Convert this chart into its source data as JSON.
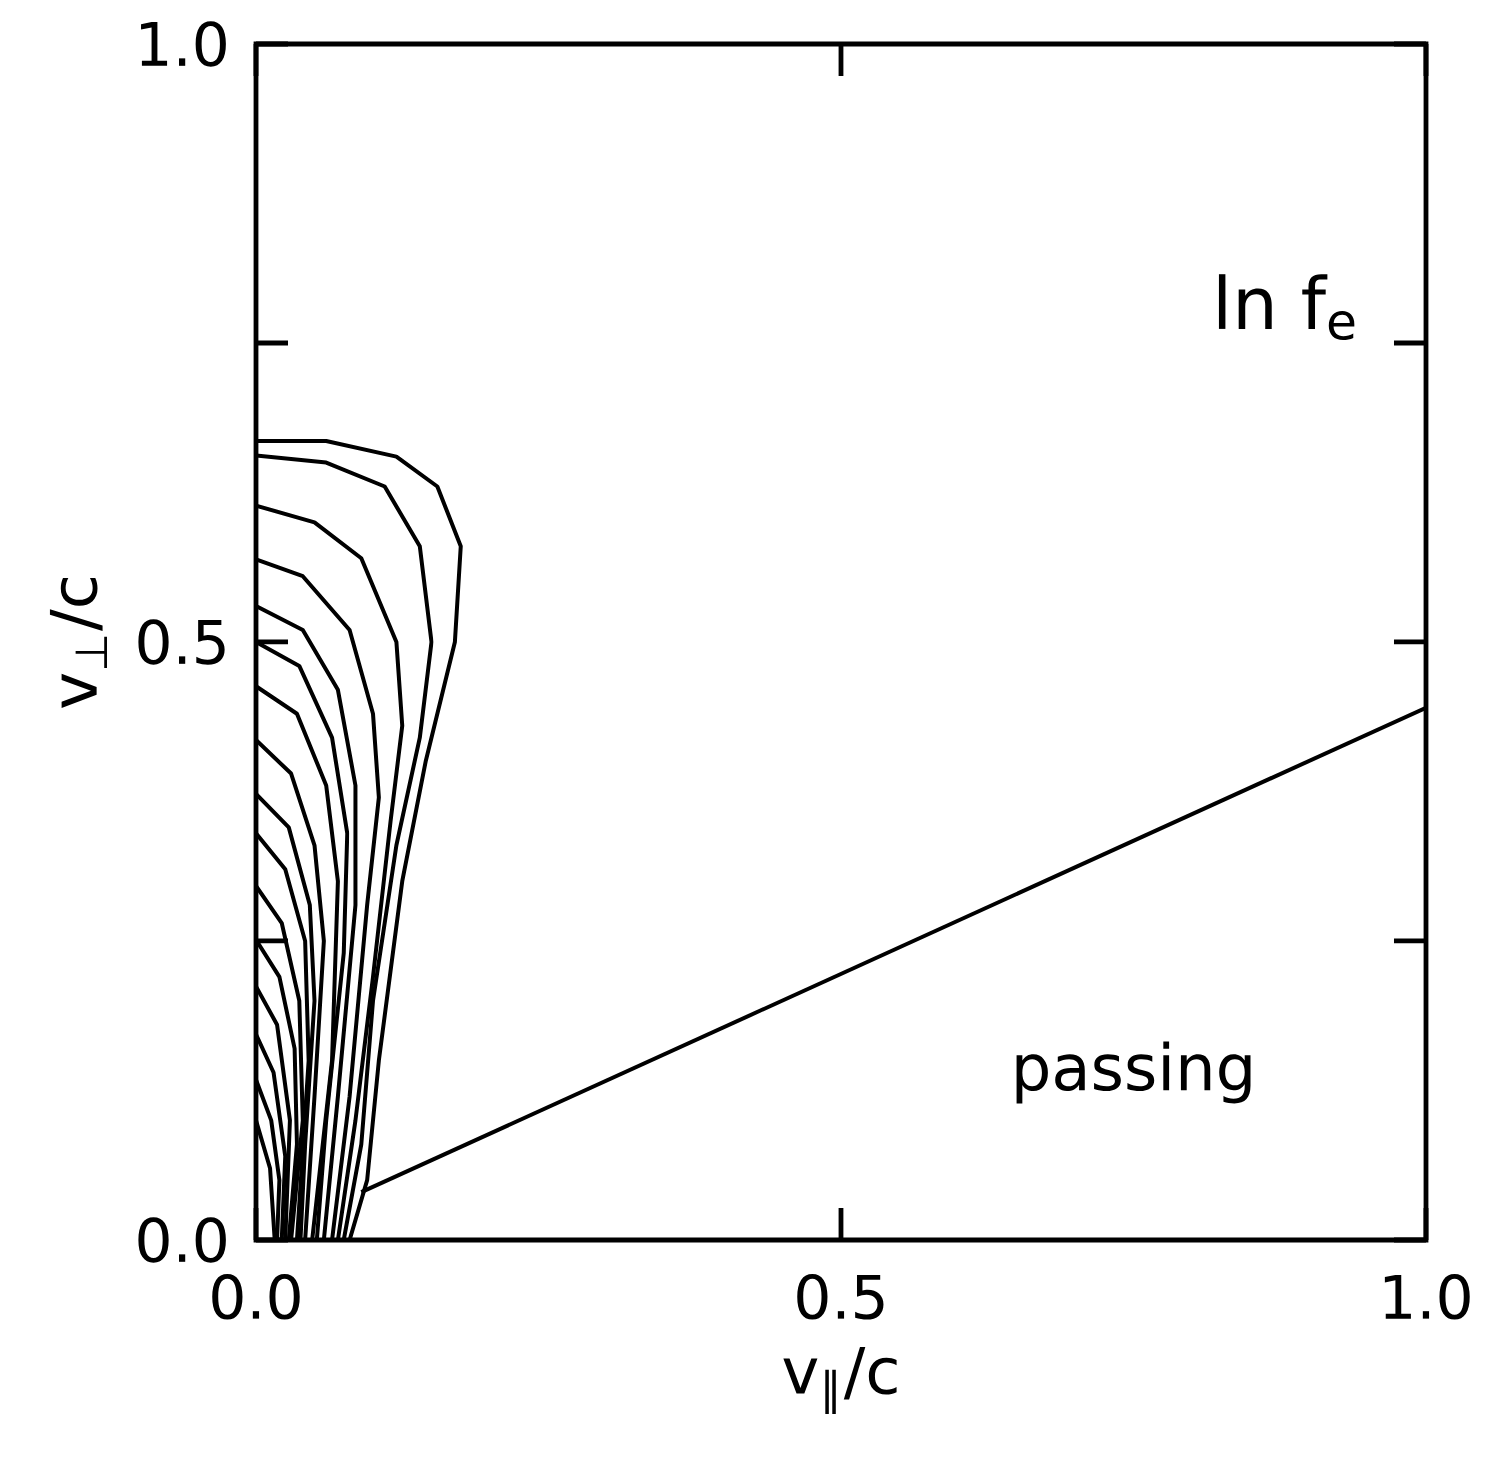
{
  "chart_data": {
    "type": "line",
    "xlabel": "v$_{∥}$/c",
    "ylabel": "v$_{⊥}$/c",
    "annotations": [
      "ln f$_{e}$",
      "passing"
    ],
    "xlim": [
      0,
      1
    ],
    "ylim": [
      0,
      1
    ],
    "xticks": [
      {
        "value": 0,
        "label": "0.0"
      },
      {
        "value": 0.5,
        "label": "0.5"
      },
      {
        "value": 1,
        "label": "1.0"
      }
    ],
    "yticks": [
      {
        "value": 0,
        "label": "0.0"
      },
      {
        "value": 0.25,
        "label": null
      },
      {
        "value": 0.5,
        "label": "0.5"
      },
      {
        "value": 0.75,
        "label": null
      },
      {
        "value": 1,
        "label": "1.0"
      }
    ],
    "marker": "none",
    "line_style": "solid",
    "series": [
      {
        "color": "#000000",
        "x": [
          0,
          0.06,
          0.12,
          0.155,
          0.175,
          0.17,
          0.145,
          0.125,
          0.105,
          0.095,
          0.08
        ],
        "values": [
          0.668,
          0.668,
          0.655,
          0.63,
          0.58,
          0.5,
          0.4,
          0.3,
          0.15,
          0.05,
          0.0
        ]
      },
      {
        "color": "#000000",
        "x": [
          0,
          0.06,
          0.11,
          0.14,
          0.15,
          0.14,
          0.12,
          0.1,
          0.09,
          0.075
        ],
        "values": [
          0.656,
          0.65,
          0.63,
          0.58,
          0.5,
          0.42,
          0.33,
          0.2,
          0.08,
          0
        ]
      },
      {
        "color": "#000000",
        "x": [
          0,
          0.05,
          0.09,
          0.12,
          0.125,
          0.115,
          0.1,
          0.085,
          0.07
        ],
        "values": [
          0.614,
          0.6,
          0.57,
          0.5,
          0.43,
          0.35,
          0.22,
          0.1,
          0
        ]
      },
      {
        "color": "#000000",
        "x": [
          0,
          0.04,
          0.08,
          0.1,
          0.105,
          0.095,
          0.08,
          0.065
        ],
        "values": [
          0.569,
          0.555,
          0.51,
          0.44,
          0.37,
          0.28,
          0.12,
          0
        ]
      },
      {
        "color": "#000000",
        "x": [
          0,
          0.04,
          0.07,
          0.085,
          0.085,
          0.07,
          0.058
        ],
        "values": [
          0.53,
          0.51,
          0.46,
          0.38,
          0.28,
          0.12,
          0
        ]
      },
      {
        "color": "#000000",
        "x": [
          0,
          0.037,
          0.065,
          0.078,
          0.075,
          0.06,
          0.052
        ],
        "values": [
          0.5,
          0.48,
          0.42,
          0.34,
          0.24,
          0.1,
          0
        ]
      },
      {
        "color": "#000000",
        "x": [
          0,
          0.035,
          0.06,
          0.07,
          0.065,
          0.048
        ],
        "values": [
          0.463,
          0.44,
          0.38,
          0.3,
          0.15,
          0
        ]
      },
      {
        "color": "#000000",
        "x": [
          0,
          0.03,
          0.05,
          0.058,
          0.05,
          0.042
        ],
        "values": [
          0.418,
          0.39,
          0.33,
          0.25,
          0.12,
          0
        ]
      },
      {
        "color": "#000000",
        "x": [
          0,
          0.028,
          0.046,
          0.05,
          0.042,
          0.038
        ],
        "values": [
          0.373,
          0.345,
          0.28,
          0.2,
          0.08,
          0
        ]
      },
      {
        "color": "#000000",
        "x": [
          0,
          0.025,
          0.042,
          0.045,
          0.035
        ],
        "values": [
          0.34,
          0.31,
          0.25,
          0.15,
          0
        ]
      },
      {
        "color": "#000000",
        "x": [
          0,
          0.022,
          0.037,
          0.04,
          0.03
        ],
        "values": [
          0.296,
          0.265,
          0.2,
          0.1,
          0
        ]
      },
      {
        "color": "#000000",
        "x": [
          0,
          0.02,
          0.033,
          0.035,
          0.028
        ],
        "values": [
          0.251,
          0.22,
          0.16,
          0.08,
          0
        ]
      },
      {
        "color": "#000000",
        "x": [
          0,
          0.018,
          0.029,
          0.025
        ],
        "values": [
          0.212,
          0.18,
          0.1,
          0
        ]
      },
      {
        "color": "#000000",
        "x": [
          0,
          0.015,
          0.025,
          0.022
        ],
        "values": [
          0.172,
          0.14,
          0.07,
          0
        ]
      },
      {
        "color": "#000000",
        "x": [
          0,
          0.013,
          0.02,
          0.018
        ],
        "values": [
          0.134,
          0.1,
          0.05,
          0
        ]
      },
      {
        "color": "#000000",
        "x": [
          0,
          0.012,
          0.016
        ],
        "values": [
          0.1,
          0.06,
          0
        ]
      },
      {
        "color": "#000000",
        "x": [
          0.09,
          1.0
        ],
        "values": [
          0.04,
          0.445
        ]
      }
    ]
  }
}
